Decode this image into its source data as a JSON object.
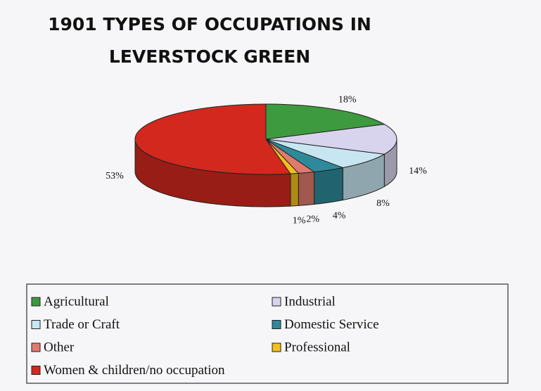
{
  "chart_data": {
    "type": "pie",
    "title": "1901 TYPES OF OCCUPATIONS IN LEVERSTOCK GREEN",
    "categories": [
      "Agricultural",
      "Industrial",
      "Trade or Craft",
      "Domestic Service",
      "Other",
      "Professional",
      "Women & children/no occupation"
    ],
    "values": [
      18,
      14,
      8,
      4,
      2,
      1,
      53
    ],
    "value_labels": [
      "18%",
      "14%",
      "8%",
      "4%",
      "2%",
      "1%",
      "53%"
    ],
    "colors": [
      "#3e9a3e",
      "#d8d4ee",
      "#c8e6f2",
      "#2e8a9a",
      "#e07a6e",
      "#f2c01e",
      "#d2281e"
    ],
    "legend": "bottom"
  }
}
